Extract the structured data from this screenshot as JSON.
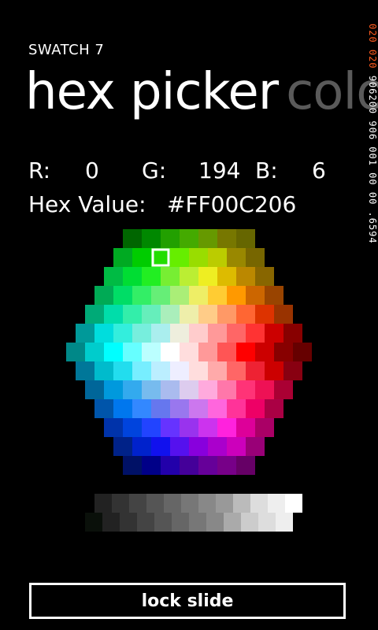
{
  "app": {
    "name": "SWATCH 7",
    "pivot_title": "hex picker",
    "pivot_next": "colo"
  },
  "color": {
    "r_label": "R:",
    "r_value": "0",
    "g_label": "G:",
    "g_value": "194",
    "b_label": "B:",
    "b_value": "6",
    "hex_label": "Hex Value:",
    "hex_value": "#FF00C206"
  },
  "side_readout": {
    "top_red": "020 020",
    "main": "906200 906 001 00 00 .6594"
  },
  "selected_swatch": {
    "row": 1,
    "col": 2
  },
  "hex_rows": [
    [
      "#006600",
      "#008800",
      "#22a000",
      "#44aa00",
      "#669900",
      "#777700",
      "#666600"
    ],
    [
      "#00aa22",
      "#00cc00",
      "#22dd00",
      "#66ee00",
      "#99dd00",
      "#bbcc00",
      "#998800",
      "#776600"
    ],
    [
      "#00bb44",
      "#00dd33",
      "#22ee22",
      "#77ee33",
      "#bbee33",
      "#eeee22",
      "#ddbb00",
      "#bb8800",
      "#886600"
    ],
    [
      "#00aa55",
      "#00dd66",
      "#33ee66",
      "#66ee77",
      "#aaee77",
      "#eeee66",
      "#ffcc33",
      "#ff9900",
      "#cc6600",
      "#994400"
    ],
    [
      "#00aa77",
      "#00ddaa",
      "#33eeaa",
      "#66eebb",
      "#aaeebb",
      "#eeeeaa",
      "#ffcc88",
      "#ff9966",
      "#ff6633",
      "#dd3300",
      "#993300"
    ],
    [
      "#009999",
      "#00dddd",
      "#33eedd",
      "#77eedd",
      "#aaeeee",
      "#eeeedd",
      "#ffcccc",
      "#ff9999",
      "#ff6666",
      "#ff3333",
      "#cc0000",
      "#880000"
    ],
    [
      "#008888",
      "#00cccc",
      "#00ffff",
      "#66ffff",
      "#bbffff",
      "#ffffff",
      "#ffdddd",
      "#ff9999",
      "#ff5555",
      "#ff0000",
      "#cc0000",
      "#880000",
      "#660000"
    ],
    [
      "#007799",
      "#00bbcc",
      "#22ddee",
      "#77eeff",
      "#bbeeff",
      "#eeeeff",
      "#ffdddd",
      "#ffaaaa",
      "#ff6666",
      "#ee2233",
      "#cc0000",
      "#880011"
    ],
    [
      "#006699",
      "#0099dd",
      "#33aaee",
      "#77bbee",
      "#aabbee",
      "#ddccee",
      "#ffaadd",
      "#ff77aa",
      "#ff3377",
      "#ee1155",
      "#aa0033"
    ],
    [
      "#0055aa",
      "#0077ee",
      "#3388ff",
      "#6677ee",
      "#9977ee",
      "#cc77ee",
      "#ff66dd",
      "#ff3399",
      "#ee0066",
      "#aa0044"
    ],
    [
      "#0033aa",
      "#0044dd",
      "#2244ff",
      "#6633ff",
      "#9933ee",
      "#cc33ee",
      "#ff22dd",
      "#dd0099",
      "#aa0066"
    ],
    [
      "#002288",
      "#0022cc",
      "#1111ee",
      "#5511ee",
      "#8800dd",
      "#aa00cc",
      "#cc00bb",
      "#990077"
    ],
    [
      "#001166",
      "#000088",
      "#2200aa",
      "#440099",
      "#660099",
      "#770088",
      "#660066"
    ]
  ],
  "gray_rows": [
    [
      "#222222",
      "#333333",
      "#444444",
      "#555555",
      "#666666",
      "#777777",
      "#888888",
      "#999999",
      "#bbbbbb",
      "#dddddd",
      "#eeeeee",
      "#ffffff"
    ],
    [
      "#0a100a",
      "#222222",
      "#333333",
      "#444444",
      "#555555",
      "#666666",
      "#777777",
      "#888888",
      "#aaaaaa",
      "#cccccc",
      "#dddddd",
      "#eeeeee"
    ]
  ],
  "lock_button": {
    "label": "lock slide"
  }
}
